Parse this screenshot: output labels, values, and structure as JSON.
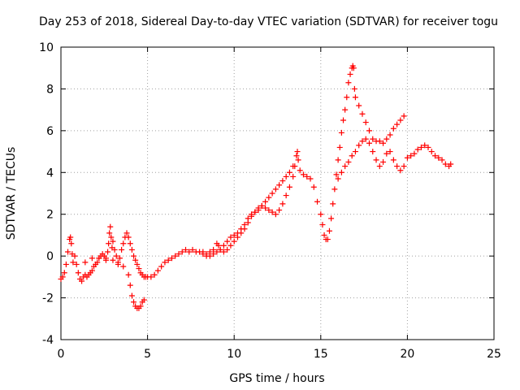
{
  "chart_data": {
    "type": "scatter",
    "title": "Day 253 of 2018, Sidereal Day-to-day VTEC variation (SDTVAR) for receiver togu",
    "xlabel": "GPS time / hours",
    "ylabel": "SDTVAR / TECUs",
    "xlim": [
      0,
      25
    ],
    "ylim": [
      -4,
      10
    ],
    "xticks": [
      "0",
      "5",
      "10",
      "15",
      "20",
      "25"
    ],
    "yticks": [
      "-4",
      "-2",
      "0",
      "2",
      "4",
      "6",
      "8",
      "10"
    ],
    "grid": true,
    "marker": "plus",
    "color": "#ff0000",
    "series": [
      {
        "name": "SDTVAR",
        "points": [
          [
            0.0,
            -1.1
          ],
          [
            0.1,
            -1.0
          ],
          [
            0.2,
            -0.8
          ],
          [
            0.3,
            -0.4
          ],
          [
            0.4,
            0.2
          ],
          [
            0.5,
            0.8
          ],
          [
            0.55,
            0.9
          ],
          [
            0.6,
            0.6
          ],
          [
            0.65,
            0.1
          ],
          [
            0.7,
            -0.3
          ],
          [
            0.8,
            0.0
          ],
          [
            0.9,
            -0.4
          ],
          [
            1.0,
            -0.8
          ],
          [
            1.1,
            -1.1
          ],
          [
            1.2,
            -1.2
          ],
          [
            1.3,
            -1.0
          ],
          [
            1.4,
            -0.9
          ],
          [
            1.5,
            -1.0
          ],
          [
            1.6,
            -0.9
          ],
          [
            1.7,
            -0.8
          ],
          [
            1.8,
            -0.7
          ],
          [
            1.9,
            -0.5
          ],
          [
            2.0,
            -0.4
          ],
          [
            2.1,
            -0.3
          ],
          [
            2.2,
            -0.1
          ],
          [
            2.3,
            0.0
          ],
          [
            2.4,
            0.1
          ],
          [
            2.5,
            0.0
          ],
          [
            2.6,
            -0.2
          ],
          [
            2.7,
            0.2
          ],
          [
            2.75,
            0.6
          ],
          [
            2.8,
            1.1
          ],
          [
            2.85,
            1.4
          ],
          [
            2.9,
            0.9
          ],
          [
            2.95,
            0.4
          ],
          [
            3.0,
            0.7
          ],
          [
            3.1,
            0.3
          ],
          [
            3.2,
            0.0
          ],
          [
            3.3,
            -0.3
          ],
          [
            3.4,
            -0.1
          ],
          [
            3.5,
            0.3
          ],
          [
            3.6,
            0.6
          ],
          [
            3.7,
            0.9
          ],
          [
            3.8,
            1.1
          ],
          [
            3.9,
            0.9
          ],
          [
            4.0,
            0.6
          ],
          [
            4.1,
            0.3
          ],
          [
            4.2,
            0.0
          ],
          [
            4.3,
            -0.2
          ],
          [
            4.4,
            -0.4
          ],
          [
            4.5,
            -0.6
          ],
          [
            4.6,
            -0.8
          ],
          [
            4.7,
            -0.9
          ],
          [
            4.8,
            -1.0
          ],
          [
            4.9,
            -1.0
          ],
          [
            5.0,
            -1.0
          ],
          [
            5.2,
            -1.0
          ],
          [
            5.4,
            -0.9
          ],
          [
            5.6,
            -0.7
          ],
          [
            5.8,
            -0.5
          ],
          [
            6.0,
            -0.3
          ],
          [
            6.2,
            -0.2
          ],
          [
            6.4,
            -0.1
          ],
          [
            6.6,
            0.0
          ],
          [
            6.8,
            0.1
          ],
          [
            7.0,
            0.2
          ],
          [
            7.2,
            0.3
          ],
          [
            7.4,
            0.2
          ],
          [
            7.6,
            0.3
          ],
          [
            7.8,
            0.2
          ],
          [
            8.0,
            0.2
          ],
          [
            8.2,
            0.2
          ],
          [
            8.4,
            0.1
          ],
          [
            8.6,
            0.2
          ],
          [
            8.8,
            0.1
          ],
          [
            9.0,
            0.2
          ],
          [
            9.2,
            0.3
          ],
          [
            9.4,
            0.5
          ],
          [
            9.6,
            0.7
          ],
          [
            9.8,
            0.9
          ],
          [
            10.0,
            1.0
          ],
          [
            10.2,
            1.1
          ],
          [
            10.4,
            1.3
          ],
          [
            10.6,
            1.5
          ],
          [
            10.8,
            1.8
          ],
          [
            11.0,
            2.0
          ],
          [
            11.2,
            2.1
          ],
          [
            11.4,
            2.3
          ],
          [
            11.6,
            2.4
          ],
          [
            11.8,
            2.3
          ],
          [
            12.0,
            2.2
          ],
          [
            12.2,
            2.1
          ],
          [
            12.4,
            2.0
          ],
          [
            12.6,
            2.2
          ],
          [
            12.8,
            2.5
          ],
          [
            13.0,
            2.9
          ],
          [
            13.2,
            3.3
          ],
          [
            13.4,
            3.8
          ],
          [
            13.5,
            4.3
          ],
          [
            13.6,
            4.8
          ],
          [
            13.65,
            5.0
          ],
          [
            13.7,
            4.6
          ],
          [
            13.8,
            4.1
          ],
          [
            14.0,
            3.9
          ],
          [
            14.2,
            3.8
          ],
          [
            14.4,
            3.7
          ],
          [
            14.6,
            3.3
          ],
          [
            14.8,
            2.6
          ],
          [
            15.0,
            2.0
          ],
          [
            15.1,
            1.5
          ],
          [
            15.2,
            1.0
          ],
          [
            15.3,
            0.8
          ],
          [
            15.4,
            0.8
          ],
          [
            15.5,
            1.2
          ],
          [
            15.6,
            1.8
          ],
          [
            15.7,
            2.5
          ],
          [
            15.8,
            3.2
          ],
          [
            15.9,
            3.9
          ],
          [
            16.0,
            4.6
          ],
          [
            16.1,
            5.2
          ],
          [
            16.2,
            5.9
          ],
          [
            16.3,
            6.5
          ],
          [
            16.4,
            7.0
          ],
          [
            16.5,
            7.6
          ],
          [
            16.6,
            8.3
          ],
          [
            16.7,
            8.7
          ],
          [
            16.8,
            9.0
          ],
          [
            16.85,
            9.1
          ],
          [
            16.9,
            9.0
          ],
          [
            16.95,
            8.0
          ],
          [
            17.0,
            7.6
          ],
          [
            17.2,
            7.2
          ],
          [
            17.4,
            6.8
          ],
          [
            17.6,
            6.4
          ],
          [
            17.8,
            6.0
          ],
          [
            18.0,
            5.6
          ],
          [
            18.2,
            5.5
          ],
          [
            18.4,
            5.5
          ],
          [
            18.6,
            5.4
          ],
          [
            18.8,
            5.6
          ],
          [
            19.0,
            5.8
          ],
          [
            19.2,
            6.1
          ],
          [
            19.4,
            6.3
          ],
          [
            19.6,
            6.5
          ],
          [
            19.8,
            6.7
          ],
          [
            1.4,
            -0.3
          ],
          [
            1.8,
            -0.1
          ],
          [
            2.2,
            -0.1
          ],
          [
            2.6,
            -0.1
          ],
          [
            3.0,
            -0.2
          ],
          [
            3.3,
            -0.4
          ],
          [
            3.6,
            -0.5
          ],
          [
            3.9,
            -0.9
          ],
          [
            4.0,
            -1.4
          ],
          [
            4.1,
            -1.9
          ],
          [
            4.2,
            -2.2
          ],
          [
            4.3,
            -2.4
          ],
          [
            4.4,
            -2.5
          ],
          [
            4.5,
            -2.5
          ],
          [
            4.6,
            -2.4
          ],
          [
            4.7,
            -2.2
          ],
          [
            4.8,
            -2.1
          ],
          [
            8.2,
            0.1
          ],
          [
            8.4,
            0.0
          ],
          [
            8.6,
            0.0
          ],
          [
            8.8,
            0.3
          ],
          [
            9.0,
            0.6
          ],
          [
            9.1,
            0.5
          ],
          [
            9.2,
            0.3
          ],
          [
            9.4,
            0.2
          ],
          [
            9.6,
            0.3
          ],
          [
            9.8,
            0.5
          ],
          [
            10.0,
            0.7
          ],
          [
            10.2,
            0.9
          ],
          [
            10.4,
            1.1
          ],
          [
            10.6,
            1.3
          ],
          [
            10.8,
            1.6
          ],
          [
            11.0,
            1.9
          ],
          [
            11.2,
            2.1
          ],
          [
            11.4,
            2.2
          ],
          [
            11.6,
            2.4
          ],
          [
            11.8,
            2.6
          ],
          [
            12.0,
            2.8
          ],
          [
            12.2,
            3.0
          ],
          [
            12.4,
            3.2
          ],
          [
            12.6,
            3.4
          ],
          [
            12.8,
            3.6
          ],
          [
            13.0,
            3.8
          ],
          [
            13.2,
            4.0
          ],
          [
            13.4,
            4.3
          ],
          [
            16.0,
            3.7
          ],
          [
            16.2,
            4.0
          ],
          [
            16.4,
            4.3
          ],
          [
            16.6,
            4.5
          ],
          [
            16.8,
            4.8
          ],
          [
            17.0,
            5.0
          ],
          [
            17.2,
            5.3
          ],
          [
            17.4,
            5.5
          ],
          [
            17.6,
            5.6
          ],
          [
            17.8,
            5.4
          ],
          [
            18.0,
            5.0
          ],
          [
            18.2,
            4.6
          ],
          [
            18.4,
            4.3
          ],
          [
            18.6,
            4.5
          ],
          [
            18.8,
            4.9
          ],
          [
            19.0,
            5.0
          ],
          [
            19.2,
            4.6
          ],
          [
            19.4,
            4.3
          ],
          [
            19.6,
            4.1
          ],
          [
            19.8,
            4.3
          ],
          [
            20.0,
            4.7
          ],
          [
            20.2,
            4.8
          ],
          [
            20.4,
            4.9
          ],
          [
            20.6,
            5.1
          ],
          [
            20.8,
            5.2
          ],
          [
            21.0,
            5.3
          ],
          [
            21.2,
            5.2
          ],
          [
            21.4,
            5.0
          ],
          [
            21.6,
            4.8
          ],
          [
            21.8,
            4.7
          ],
          [
            22.0,
            4.6
          ],
          [
            22.2,
            4.4
          ],
          [
            22.4,
            4.3
          ],
          [
            22.5,
            4.4
          ]
        ]
      }
    ]
  }
}
